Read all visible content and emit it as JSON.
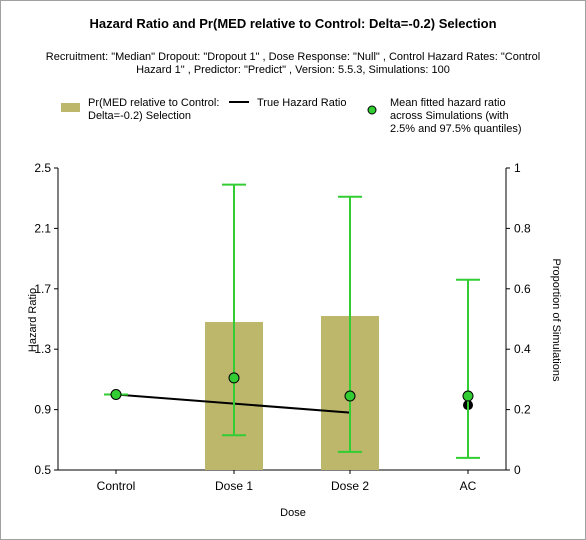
{
  "chart_data": {
    "type": "bar",
    "title": "Hazard Ratio and Pr(MED relative to Control: Delta=-0.2) Selection",
    "subtitle": "Recruitment: \"Median\" Dropout: \"Dropout 1\" , Dose Response: \"Null\" , Control Hazard Rates: \"Control Hazard 1\" , Predictor: \"Predict\" , Version: 5.5.3, Simulations: 100",
    "xlabel": "Dose",
    "ylabel": "Hazard Ratio",
    "y2label": "Proportion of Simulations",
    "categories": [
      "Control",
      "Dose 1",
      "Dose 2",
      "AC"
    ],
    "ylim": [
      0.5,
      2.5
    ],
    "y_ticks": [
      "0.5",
      "0.9",
      "1.3",
      "1.7",
      "2.1",
      "2.5"
    ],
    "y2lim": [
      0,
      1
    ],
    "y2_ticks": [
      "0",
      "0.2",
      "0.4",
      "0.6",
      "0.8",
      "1"
    ],
    "legend": {
      "bar": "Pr(MED relative to Control: Delta=-0.2) Selection",
      "line": "True Hazard Ratio",
      "points": "Mean fitted hazard ratio across Simulations (with 2.5% and 97.5% quantiles)"
    },
    "series": [
      {
        "name": "Pr(MED relative to Control: Delta=-0.2) Selection",
        "kind": "bar",
        "axis": "right",
        "values": [
          null,
          0.49,
          0.51,
          null
        ]
      },
      {
        "name": "True Hazard Ratio",
        "kind": "line",
        "values": [
          1.0,
          null,
          0.88,
          0.93
        ],
        "line_categories": [
          "Control",
          "Dose 2"
        ]
      },
      {
        "name": "Mean fitted hazard ratio across Simulations (with 2.5% and 97.5% quantiles)",
        "kind": "points",
        "values": [
          1.0,
          1.11,
          0.99,
          0.99
        ],
        "lower": [
          null,
          0.73,
          0.62,
          0.58
        ],
        "upper": [
          null,
          2.39,
          2.31,
          1.76
        ]
      }
    ],
    "colors": {
      "bar": "#bdb76b",
      "line": "#000000",
      "points_fill": "#32cd32",
      "whisker": "#32cd32"
    }
  }
}
